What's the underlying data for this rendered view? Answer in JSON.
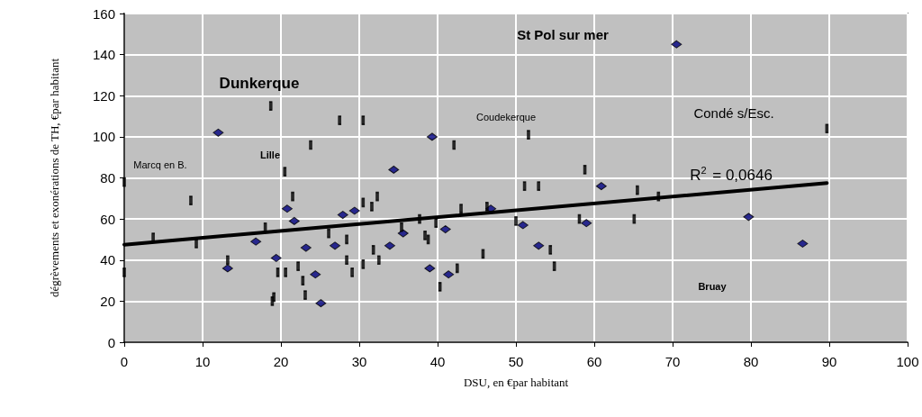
{
  "chart_data": {
    "type": "scatter",
    "xlabel": "DSU, en €par habitant",
    "ylabel": "dégrèvements et exonérations de TH, €par habitant",
    "xlim": [
      0,
      100
    ],
    "xticks": [
      0,
      10,
      20,
      30,
      40,
      50,
      60,
      70,
      80,
      90,
      100
    ],
    "ylim": [
      0,
      160
    ],
    "yticks": [
      0,
      20,
      40,
      60,
      80,
      100,
      120,
      140,
      160
    ],
    "grid": true,
    "series": [
      {
        "color": "#000080",
        "marker": "diamond",
        "x": [
          12.0,
          13.2,
          16.8,
          19.4,
          20.8,
          21.7,
          23.2,
          24.4,
          25.1,
          26.9,
          27.9,
          29.4,
          33.9,
          34.4,
          35.6,
          39.3,
          39.0,
          41.0,
          41.4,
          46.8,
          50.9,
          52.9,
          59.0,
          60.9,
          70.5,
          79.7,
          86.6
        ],
        "values": [
          102,
          36,
          49,
          41,
          65,
          59,
          46,
          33,
          19,
          47,
          62,
          64,
          47,
          84,
          53,
          100,
          36,
          55,
          33,
          65,
          57,
          47,
          58,
          76,
          145,
          61,
          48
        ]
      },
      {
        "color": "#000000",
        "marker": "square",
        "x": [
          0,
          0,
          3.7,
          8.5,
          9.2,
          13.2,
          18.0,
          18.7,
          18.9,
          19.1,
          19.6,
          20.5,
          20.6,
          21.5,
          22.2,
          22.8,
          23.1,
          23.8,
          26.1,
          27.5,
          28.4,
          28.4,
          29.1,
          30.5,
          30.5,
          30.5,
          31.6,
          31.8,
          32.3,
          32.5,
          35.4,
          37.7,
          38.4,
          38.8,
          39.8,
          40.3,
          42.1,
          42.5,
          43.0,
          45.8,
          46.3,
          50.0,
          51.1,
          51.6,
          52.9,
          54.4,
          54.9,
          58.1,
          58.8,
          65.1,
          65.5,
          68.2,
          89.7
        ],
        "values": [
          78,
          34,
          51,
          69,
          48,
          40,
          56,
          115,
          20,
          22,
          34,
          83,
          34,
          71,
          37,
          30,
          23,
          96,
          53,
          108,
          50,
          40,
          34,
          108,
          68,
          38,
          66,
          45,
          71,
          40,
          56,
          60,
          52,
          50,
          58,
          27,
          96,
          36,
          65,
          43,
          66,
          59,
          76,
          101,
          76,
          45,
          37,
          60,
          84,
          60,
          74,
          71,
          104
        ]
      },
      {
        "type": "line",
        "color": "#000000",
        "marker": "none",
        "line_style": "solid",
        "x": [
          0,
          89.7
        ],
        "values": [
          47.5,
          77.5
        ]
      }
    ],
    "annotations": [
      "Dunkerque",
      "St Pol sur mer",
      "Coudekerque",
      "Marcq en B.",
      "Lille",
      "Condé s/Esc.",
      "Bruay",
      "R$^{2}$ = 0,0646"
    ]
  }
}
